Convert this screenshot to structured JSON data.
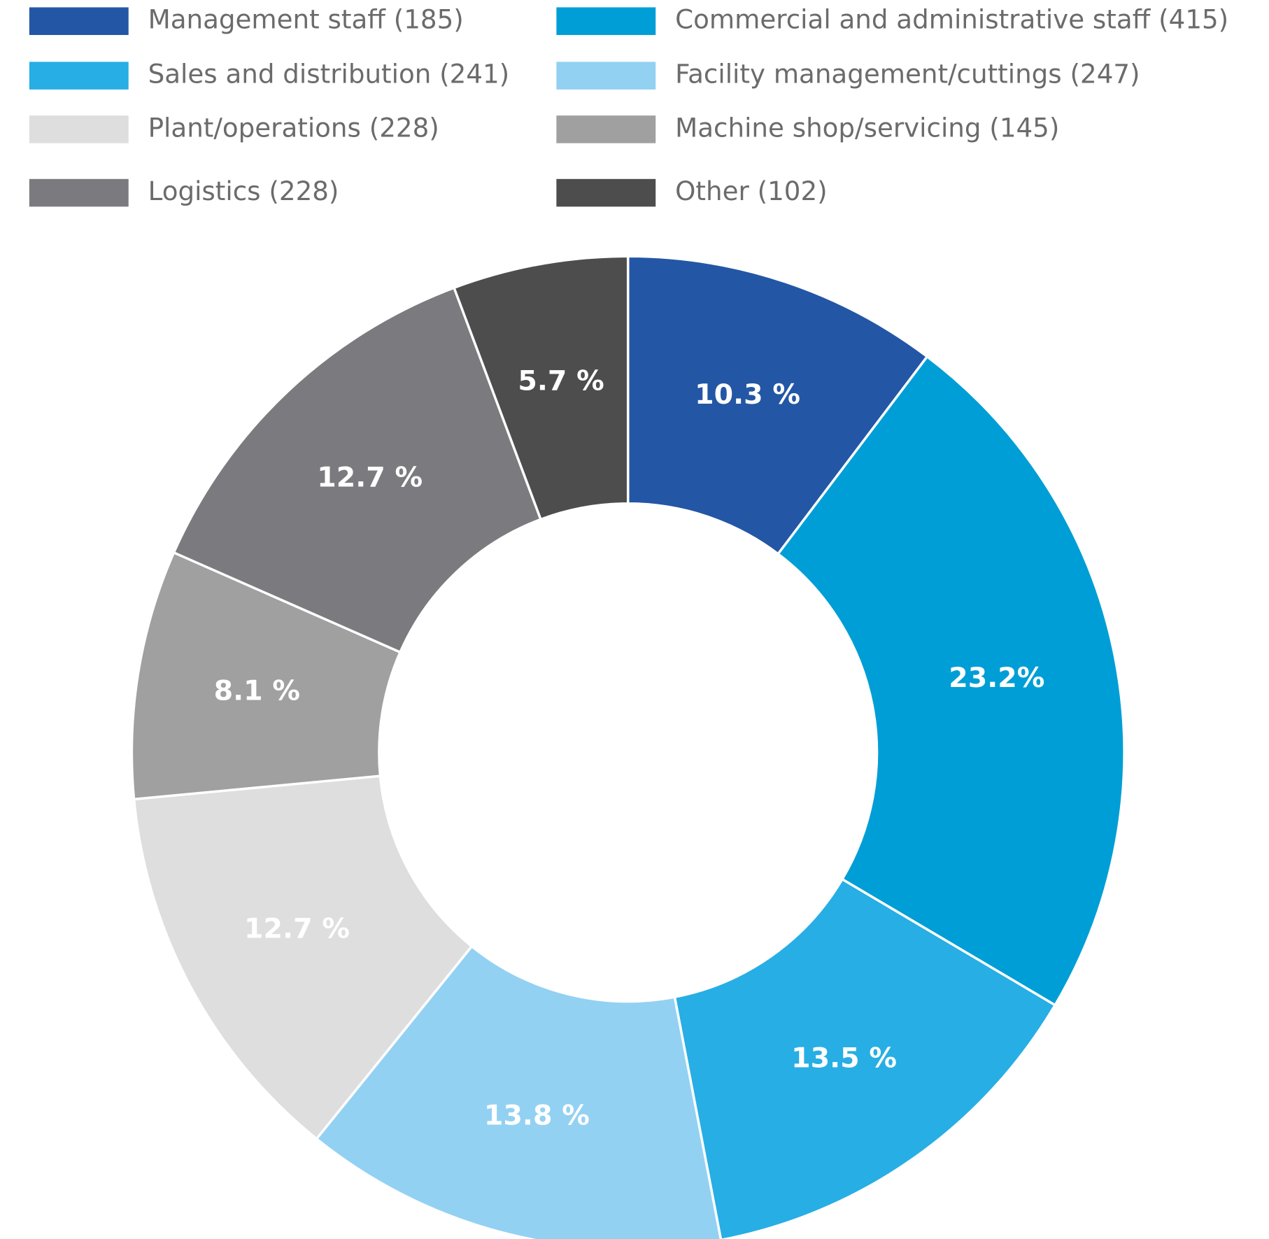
{
  "chart_data": {
    "type": "donut",
    "categories": [
      "Management staff (185)",
      "Commercial and administrative staff (415)",
      "Sales and distribution (241)",
      "Facility management/cuttings (247)",
      "Plant/operations (228)",
      "Machine shop/servicing (145)",
      "Logistics (228)",
      "Other (102)"
    ],
    "values": [
      10.3,
      23.2,
      13.5,
      13.8,
      12.7,
      8.1,
      12.7,
      5.7
    ],
    "value_labels": [
      "10.3 %",
      "23.2%",
      "13.5 %",
      "13.8 %",
      "12.7 %",
      "8.1 %",
      "12.7 %",
      "5.7 %"
    ],
    "colors": [
      "#2356a5",
      "#009ed6",
      "#27aee4",
      "#93d1f3",
      "#dedede",
      "#a0a0a0",
      "#7b7b7f",
      "#4d4d4d"
    ],
    "legend": "top"
  }
}
